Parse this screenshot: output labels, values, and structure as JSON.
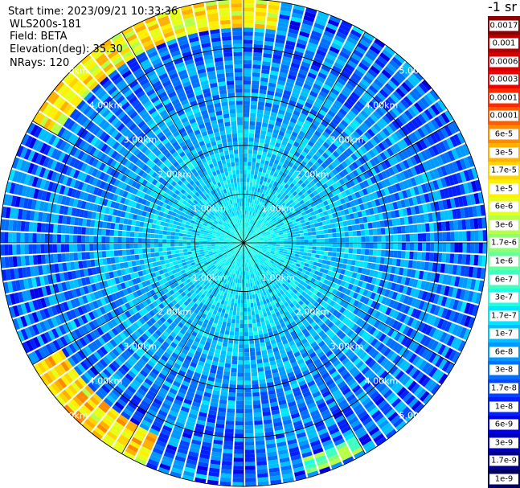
{
  "info": {
    "start_time": "Start time: 2023/09/21 10:33:36",
    "instrument": "WLS200s-181",
    "field": "Field: BETA",
    "elevation": "Elevation(deg): 35.30",
    "nrays": "NRays: 120"
  },
  "chart_data": {
    "type": "heatmap",
    "projection": "polar-ppi",
    "field": "BETA",
    "n_rays": 120,
    "elevation_deg": 35.3,
    "range_km_max": 5.0,
    "range_ring_labels": [
      "1.00km",
      "2.00km",
      "3.00km",
      "4.00km",
      "5.00km"
    ],
    "range_rings_km": [
      1,
      2,
      3,
      4,
      5
    ],
    "grid": true,
    "colorbar": {
      "unit_label": "-1 sr",
      "position": "right",
      "entries": [
        {
          "label": "0.0017",
          "color": "#8b0000"
        },
        {
          "label": "0.001",
          "color": "#b40000"
        },
        {
          "label": "0.0006",
          "color": "#d40000"
        },
        {
          "label": "0.0003",
          "color": "#f00000"
        },
        {
          "label": "0.00017",
          "color": "#ff2a00"
        },
        {
          "label": "0.0001",
          "color": "#ff5a00"
        },
        {
          "label": "6e-5",
          "color": "#ff8a00"
        },
        {
          "label": "3e-5",
          "color": "#ffb000"
        },
        {
          "label": "1.7e-5",
          "color": "#ffd400"
        },
        {
          "label": "1e-5",
          "color": "#fff000"
        },
        {
          "label": "6e-6",
          "color": "#e6ff1a"
        },
        {
          "label": "3e-6",
          "color": "#b8ff47"
        },
        {
          "label": "1.7e-6",
          "color": "#8cff73"
        },
        {
          "label": "1e-6",
          "color": "#66ff99"
        },
        {
          "label": "6e-7",
          "color": "#40ffc0"
        },
        {
          "label": "3e-7",
          "color": "#1affe6"
        },
        {
          "label": "1.7e-7",
          "color": "#00e6ff"
        },
        {
          "label": "1e-7",
          "color": "#00c0ff"
        },
        {
          "label": "6e-8",
          "color": "#0099ff"
        },
        {
          "label": "3e-8",
          "color": "#0070ff"
        },
        {
          "label": "1.7e-8",
          "color": "#0048ff"
        },
        {
          "label": "1e-8",
          "color": "#0020ff"
        },
        {
          "label": "6e-9",
          "color": "#0000e6"
        },
        {
          "label": "3e-9",
          "color": "#0000b8"
        },
        {
          "label": "1.7e-9",
          "color": "#00008c"
        },
        {
          "label": "1e-9",
          "color": "#000060"
        }
      ]
    },
    "band_profile": {
      "range_km": [
        0,
        1,
        2,
        3,
        4,
        5
      ],
      "typical_log10_beta": [
        -6.5,
        -6.8,
        -7.0,
        -7.3,
        -7.5,
        -7.6
      ]
    },
    "high_signal_regions": [
      {
        "azimuth_deg_from": 300,
        "azimuth_deg_to": 10,
        "range_km_from": 4.4,
        "range_km_to": 5.0,
        "log10_beta": -5.0
      },
      {
        "azimuth_deg_from": 205,
        "azimuth_deg_to": 240,
        "range_km_from": 4.3,
        "range_km_to": 5.0,
        "log10_beta": -4.8
      },
      {
        "azimuth_deg_from": 150,
        "azimuth_deg_to": 165,
        "range_km_from": 4.6,
        "range_km_to": 4.9,
        "log10_beta": -6.0
      }
    ]
  }
}
